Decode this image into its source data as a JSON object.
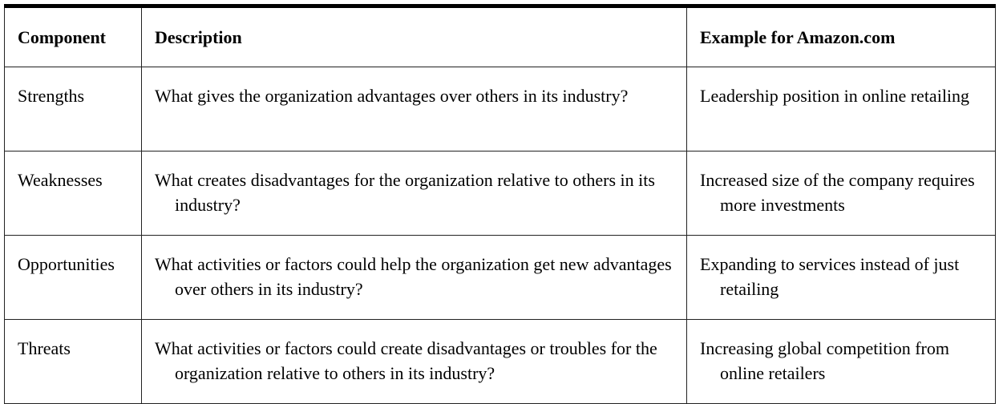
{
  "table": {
    "headers": [
      "Component",
      "Description",
      "Example for Amazon.com"
    ],
    "rows": [
      {
        "component": "Strengths",
        "description": "What gives the organization advantages over others in its industry?",
        "example": "Leadership position in online retailing"
      },
      {
        "component": "Weaknesses",
        "description": "What creates disadvantages for the organization relative to others in its industry?",
        "example": "Increased size of the company requires more investments"
      },
      {
        "component": "Opportunities",
        "description": "What activities or factors could help the organization get new advantages over others in its industry?",
        "example": "Expanding to services instead of just retailing"
      },
      {
        "component": "Threats",
        "description": "What activities or factors could create disadvantages or troubles for the organization relative to others in its industry?",
        "example": "Increasing global competition from online retailers"
      }
    ]
  }
}
